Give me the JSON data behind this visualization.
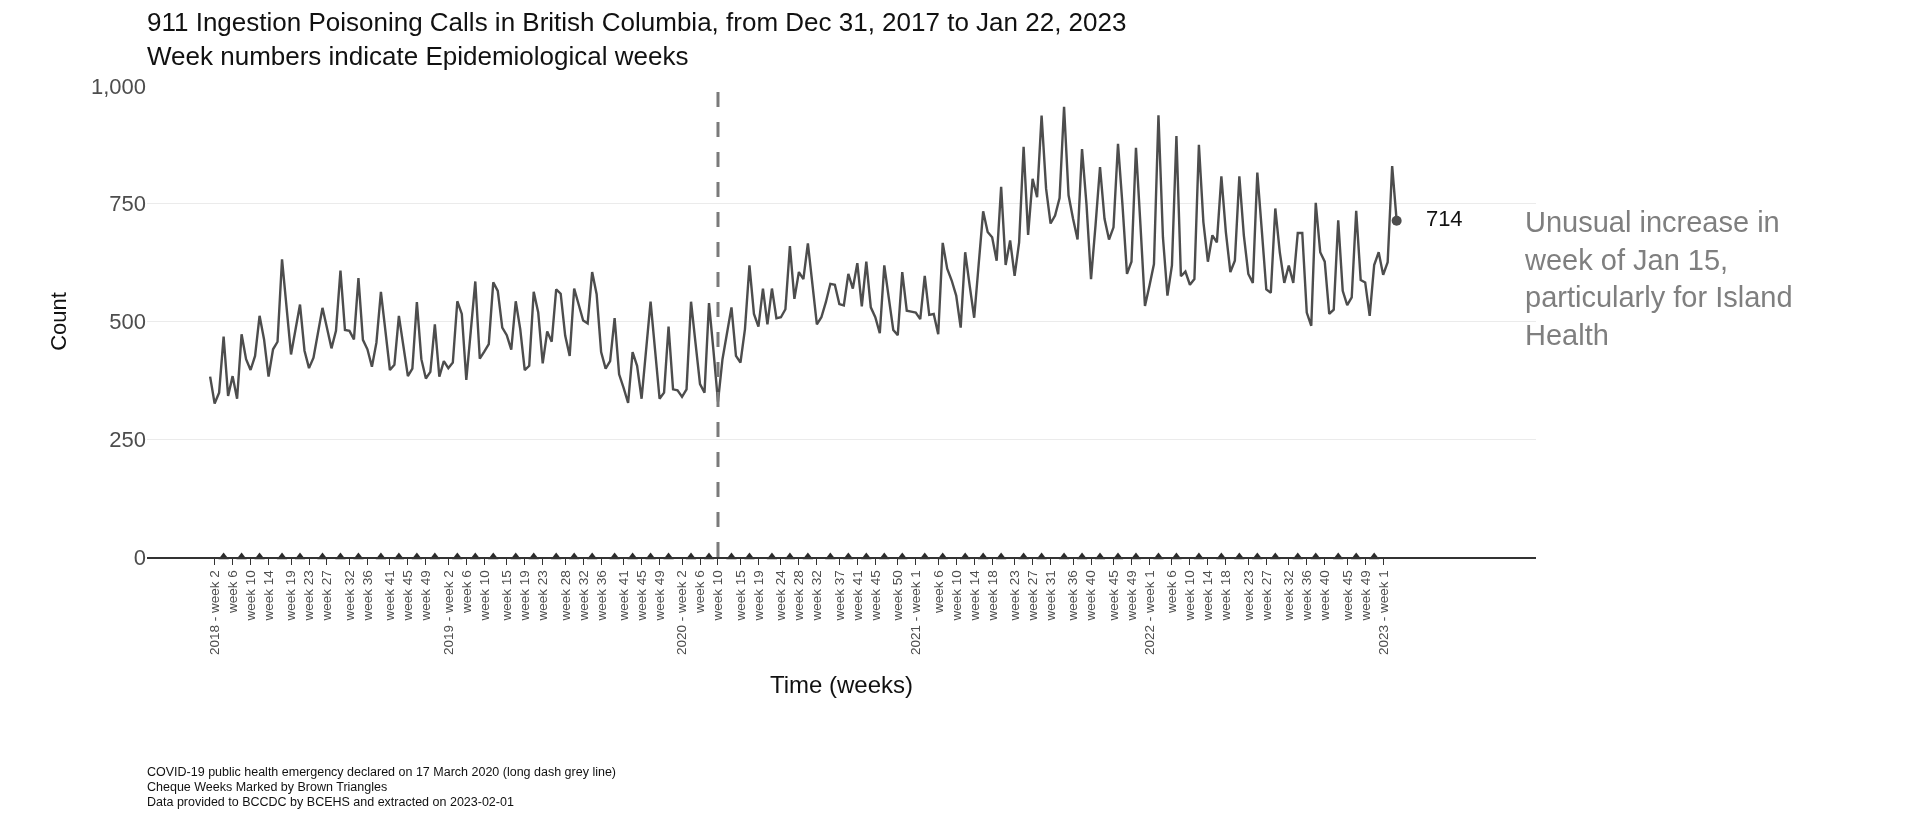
{
  "chart_data": {
    "type": "line",
    "title": "911 Ingestion Poisoning Calls in British Columbia, from Dec 31, 2017 to Jan 22, 2023",
    "subtitle": "Week numbers indicate Epidemiological weeks",
    "xlabel": "Time (weeks)",
    "ylabel": "Count",
    "categories": [
      null,
      "2018 - week 2",
      null,
      null,
      null,
      "week 6",
      null,
      null,
      null,
      "week 10",
      null,
      null,
      null,
      "week 14",
      null,
      null,
      null,
      null,
      "week 19",
      null,
      null,
      null,
      "week 23",
      null,
      null,
      null,
      "week 27",
      null,
      null,
      null,
      null,
      "week 32",
      null,
      null,
      null,
      "week 36",
      null,
      null,
      null,
      null,
      "week 41",
      null,
      null,
      null,
      "week 45",
      null,
      null,
      null,
      "week 49",
      null,
      null,
      null,
      null,
      "2019 - week 2",
      null,
      null,
      null,
      "week 6",
      null,
      null,
      null,
      "week 10",
      null,
      null,
      null,
      null,
      "week 15",
      null,
      null,
      null,
      "week 19",
      null,
      null,
      null,
      "week 23",
      null,
      null,
      null,
      null,
      "week 28",
      null,
      null,
      null,
      "week 32",
      null,
      null,
      null,
      "week 36",
      null,
      null,
      null,
      null,
      "week 41",
      null,
      null,
      null,
      "week 45",
      null,
      null,
      null,
      "week 49",
      null,
      null,
      null,
      null,
      "2020 - week 2",
      null,
      null,
      null,
      "week 6",
      null,
      null,
      null,
      "week 10",
      null,
      null,
      null,
      null,
      "week 15",
      null,
      null,
      null,
      "week 19",
      null,
      null,
      null,
      null,
      "week 24",
      null,
      null,
      null,
      "week 28",
      null,
      null,
      null,
      "week 32",
      null,
      null,
      null,
      null,
      "week 37",
      null,
      null,
      null,
      "week 41",
      null,
      null,
      null,
      "week 45",
      null,
      null,
      null,
      null,
      "week 50",
      null,
      null,
      null,
      "2021 - week 1",
      null,
      null,
      null,
      null,
      "week 6",
      null,
      null,
      null,
      "week 10",
      null,
      null,
      null,
      "week 14",
      null,
      null,
      null,
      "week 18",
      null,
      null,
      null,
      null,
      "week 23",
      null,
      null,
      null,
      "week 27",
      null,
      null,
      null,
      "week 31",
      null,
      null,
      null,
      null,
      "week 36",
      null,
      null,
      null,
      "week 40",
      null,
      null,
      null,
      null,
      "week 45",
      null,
      null,
      null,
      "week 49",
      null,
      null,
      null,
      "2022 - week 1",
      null,
      null,
      null,
      null,
      "week 6",
      null,
      null,
      null,
      "week 10",
      null,
      null,
      null,
      "week 14",
      null,
      null,
      null,
      "week 18",
      null,
      null,
      null,
      null,
      "week 23",
      null,
      null,
      null,
      "week 27",
      null,
      null,
      null,
      null,
      "week 32",
      null,
      null,
      null,
      "week 36",
      null,
      null,
      null,
      "week 40",
      null,
      null,
      null,
      null,
      "week 45",
      null,
      null,
      null,
      "week 49",
      null,
      null,
      null,
      "2023 - week 1",
      null,
      null,
      null
    ],
    "series": [
      {
        "color": "#4d4d4d",
        "marker": "none",
        "values": [
          383,
          326,
          349,
          468,
          342,
          384,
          336,
          473,
          420,
          397,
          427,
          512,
          462,
          383,
          441,
          457,
          632,
          531,
          430,
          483,
          536,
          438,
          401,
          423,
          476,
          529,
          486,
          443,
          480,
          608,
          482,
          480,
          462,
          592,
          461,
          441,
          404,
          455,
          563,
          480,
          397,
          408,
          512,
          448,
          384,
          400,
          541,
          420,
          379,
          393,
          494,
          383,
          416,
          401,
          413,
          543,
          516,
          376,
          480,
          585,
          421,
          436,
          452,
          583,
          565,
          487,
          471,
          440,
          543,
          484,
          397,
          406,
          563,
          519,
          411,
          479,
          457,
          568,
          559,
          470,
          427,
          570,
          536,
          502,
          496,
          605,
          558,
          435,
          400,
          416,
          507,
          388,
          359,
          327,
          435,
          406,
          336,
          439,
          542,
          439,
          336,
          349,
          489,
          356,
          354,
          340,
          356,
          542,
          454,
          367,
          349,
          539,
          437,
          330,
          420,
          475,
          530,
          427,
          413,
          484,
          619,
          516,
          489,
          570,
          494,
          570,
          507,
          509,
          526,
          660,
          548,
          605,
          590,
          666,
          580,
          494,
          509,
          541,
          580,
          578,
          537,
          534,
          601,
          570,
          624,
          532,
          627,
          530,
          509,
          475,
          619,
          550,
          482,
          471,
          605,
          523,
          521,
          519,
          505,
          597,
          514,
          516,
          473,
          667,
          612,
          587,
          555,
          487,
          647,
          576,
          508,
          621,
          734,
          690,
          679,
          629,
          786,
          620,
          672,
          597,
          668,
          871,
          684,
          803,
          764,
          937,
          782,
          708,
          725,
          762,
          956,
          768,
          718,
          674,
          866,
          747,
          590,
          704,
          828,
          718,
          674,
          700,
          877,
          747,
          601,
          627,
          869,
          704,
          533,
          576,
          622,
          938,
          679,
          555,
          619,
          894,
          596,
          606,
          578,
          590,
          875,
          711,
          627,
          683,
          668,
          808,
          690,
          605,
          629,
          808,
          683,
          601,
          582,
          816,
          693,
          568,
          561,
          740,
          647,
          582,
          619,
          582,
          688,
          688,
          519,
          491,
          752,
          647,
          627,
          516,
          525,
          715,
          565,
          535,
          551,
          735,
          588,
          583,
          512,
          620,
          647,
          599,
          626,
          830,
          714
        ],
        "value_labels": [
          null,
          null,
          null,
          null,
          null,
          null,
          null,
          null,
          null,
          null,
          null,
          null,
          null,
          null,
          null,
          null,
          null,
          null,
          null,
          null,
          null,
          null,
          null,
          null,
          null,
          null,
          null,
          null,
          null,
          null,
          null,
          null,
          null,
          null,
          null,
          null,
          null,
          null,
          null,
          null,
          null,
          null,
          null,
          null,
          null,
          null,
          null,
          null,
          null,
          null,
          null,
          null,
          null,
          null,
          null,
          null,
          null,
          null,
          null,
          null,
          null,
          null,
          null,
          null,
          null,
          null,
          null,
          null,
          null,
          null,
          null,
          null,
          null,
          null,
          null,
          null,
          null,
          null,
          null,
          null,
          null,
          null,
          null,
          null,
          null,
          null,
          null,
          null,
          null,
          null,
          null,
          null,
          null,
          null,
          null,
          null,
          null,
          null,
          null,
          null,
          null,
          null,
          null,
          null,
          null,
          null,
          null,
          null,
          null,
          null,
          null,
          null,
          null,
          null,
          null,
          null,
          null,
          null,
          null,
          null,
          null,
          null,
          null,
          null,
          null,
          null,
          null,
          null,
          null,
          null,
          null,
          null,
          null,
          null,
          null,
          null,
          null,
          null,
          null,
          null,
          null,
          null,
          null,
          null,
          null,
          null,
          null,
          null,
          null,
          null,
          null,
          null,
          null,
          null,
          null,
          null,
          null,
          null,
          null,
          null,
          null,
          null,
          null,
          null,
          null,
          null,
          null,
          null,
          null,
          null,
          null,
          null,
          null,
          null,
          null,
          null,
          null,
          null,
          null,
          null,
          null,
          null,
          null,
          null,
          null,
          null,
          null,
          null,
          null,
          null,
          null,
          null,
          null,
          null,
          null,
          null,
          null,
          null,
          null,
          null,
          null,
          null,
          null,
          null,
          null,
          null,
          null,
          null,
          null,
          null,
          null,
          null,
          null,
          null,
          null,
          null,
          null,
          null,
          null,
          null,
          null,
          null,
          null,
          null,
          null,
          null,
          null,
          null,
          null,
          null,
          null,
          null,
          null,
          null,
          null,
          null,
          null,
          null,
          null,
          null,
          null,
          null,
          null,
          null,
          null,
          null,
          null,
          null,
          null,
          null,
          null,
          null,
          null,
          null,
          null,
          null,
          null,
          null,
          null,
          null,
          null,
          null,
          null,
          null,
          "714"
        ]
      },
      {
        "type": "scatter",
        "color": "#2b2b2b",
        "marker": "triangle",
        "values": [
          null,
          null,
          null,
          0,
          null,
          null,
          null,
          0,
          null,
          null,
          null,
          0,
          null,
          null,
          null,
          null,
          0,
          null,
          null,
          null,
          0,
          null,
          null,
          null,
          null,
          0,
          null,
          null,
          null,
          0,
          null,
          null,
          null,
          0,
          null,
          null,
          null,
          null,
          0,
          null,
          null,
          null,
          0,
          null,
          null,
          null,
          0,
          null,
          null,
          null,
          0,
          null,
          null,
          null,
          null,
          0,
          null,
          null,
          null,
          0,
          null,
          null,
          null,
          0,
          null,
          null,
          null,
          null,
          0,
          null,
          null,
          null,
          0,
          null,
          null,
          null,
          null,
          0,
          null,
          null,
          null,
          0,
          null,
          null,
          null,
          0,
          null,
          null,
          null,
          null,
          0,
          null,
          null,
          null,
          0,
          null,
          null,
          null,
          0,
          null,
          null,
          null,
          0,
          null,
          null,
          null,
          null,
          0,
          null,
          null,
          null,
          0,
          null,
          null,
          null,
          null,
          0,
          null,
          null,
          null,
          0,
          null,
          null,
          null,
          null,
          0,
          null,
          null,
          null,
          0,
          null,
          null,
          null,
          0,
          null,
          null,
          null,
          null,
          0,
          null,
          null,
          null,
          0,
          null,
          null,
          null,
          0,
          null,
          null,
          null,
          0,
          null,
          null,
          null,
          0,
          null,
          null,
          null,
          null,
          0,
          null,
          null,
          null,
          0,
          null,
          null,
          null,
          null,
          0,
          null,
          null,
          null,
          0,
          null,
          null,
          null,
          0,
          null,
          null,
          null,
          null,
          0,
          null,
          null,
          null,
          0,
          null,
          null,
          null,
          null,
          0,
          null,
          null,
          null,
          0,
          null,
          null,
          null,
          0,
          null,
          null,
          null,
          0,
          null,
          null,
          null,
          0,
          null,
          null,
          null,
          null,
          0,
          null,
          null,
          null,
          0,
          null,
          null,
          null,
          null,
          0,
          null,
          null,
          null,
          null,
          0,
          null,
          null,
          null,
          0,
          null,
          null,
          null,
          0,
          null,
          null,
          null,
          0,
          null,
          null,
          null,
          null,
          0,
          null,
          null,
          null,
          0,
          null,
          null,
          null,
          null,
          0,
          null,
          null,
          null,
          0,
          null,
          null,
          null,
          0,
          null,
          null,
          null,
          null,
          null
        ]
      }
    ],
    "ylim": [
      0,
      1000
    ],
    "yticks": [
      0,
      250,
      500,
      750,
      {
        "value": 1000,
        "label": "1,000"
      }
    ],
    "grid": "y",
    "annotations": [
      "Unusual increase in week of Jan 15, particularly for Island Health",
      "COVID-19 public health emergency declared on 17 March 2020 (long dash grey line)",
      "Cheque Weeks Marked by Brown Triangles",
      "Data provided to BCCDC by BCEHS and extracted on 2023-02-01"
    ]
  }
}
